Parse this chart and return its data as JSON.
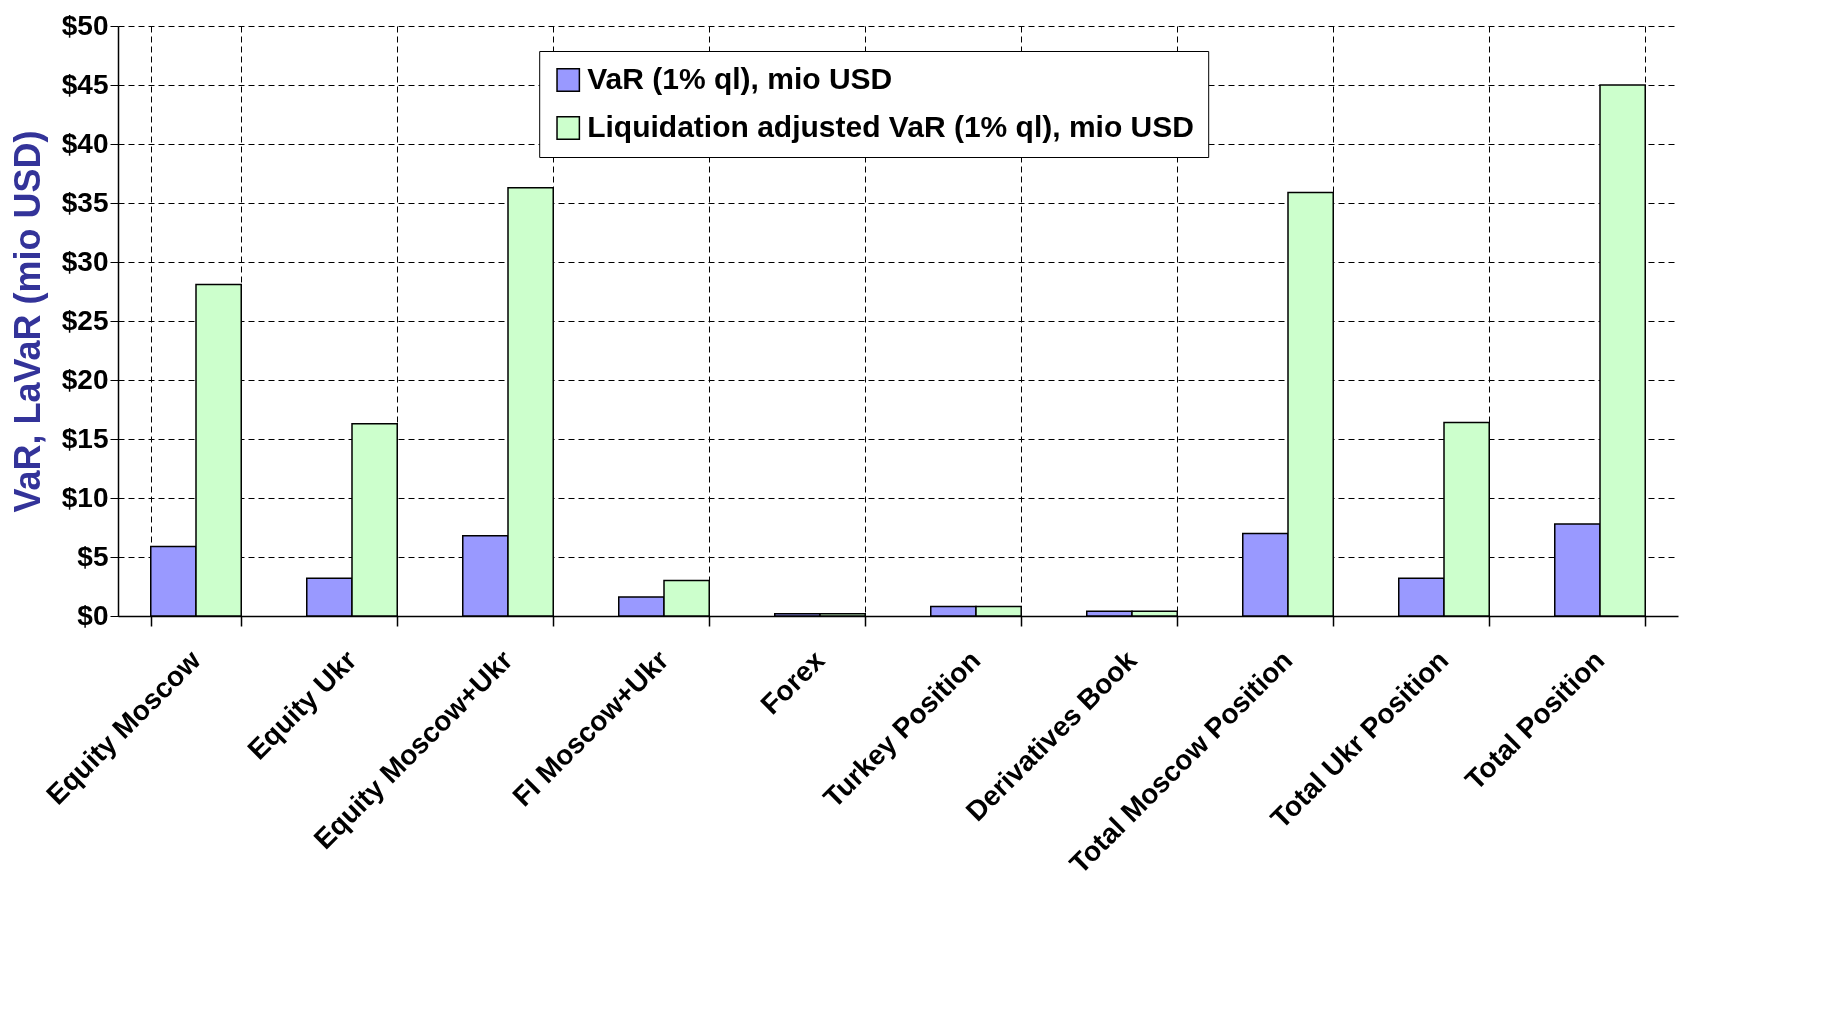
{
  "chart_data": {
    "type": "bar",
    "ylabel": "VaR, LaVaR (mio USD)",
    "categories": [
      "Equity Moscow",
      "Equity Ukr",
      "Equity Moscow+Ukr",
      "FI Moscow+Ukr",
      "Forex",
      "Turkey Position",
      "Derivatives Book",
      "Total Moscow Position",
      "Total Ukr Position",
      "Total Position"
    ],
    "series": [
      {
        "name": "VaR (1% ql), mio USD",
        "color": "#9999ff",
        "values": [
          5.9,
          3.2,
          6.8,
          1.6,
          0.2,
          0.8,
          0.4,
          7.0,
          3.2,
          7.8
        ]
      },
      {
        "name": "Liquidation adjusted VaR (1% ql), mio USD",
        "color": "#ccffcc",
        "values": [
          28.1,
          16.3,
          36.3,
          3.0,
          0.2,
          0.8,
          0.4,
          35.9,
          16.4,
          45.0
        ]
      }
    ],
    "ylim": [
      0,
      50
    ],
    "yticks": [
      {
        "value": 0,
        "label": "$0"
      },
      {
        "value": 5,
        "label": "$5"
      },
      {
        "value": 10,
        "label": "$10"
      },
      {
        "value": 15,
        "label": "$15"
      },
      {
        "value": 20,
        "label": "$20"
      },
      {
        "value": 25,
        "label": "$25"
      },
      {
        "value": 30,
        "label": "$30"
      },
      {
        "value": 35,
        "label": "$35"
      },
      {
        "value": 40,
        "label": "$40"
      },
      {
        "value": 45,
        "label": "$45"
      },
      {
        "value": 50,
        "label": "$50"
      }
    ],
    "grid": true,
    "legend": "top"
  }
}
